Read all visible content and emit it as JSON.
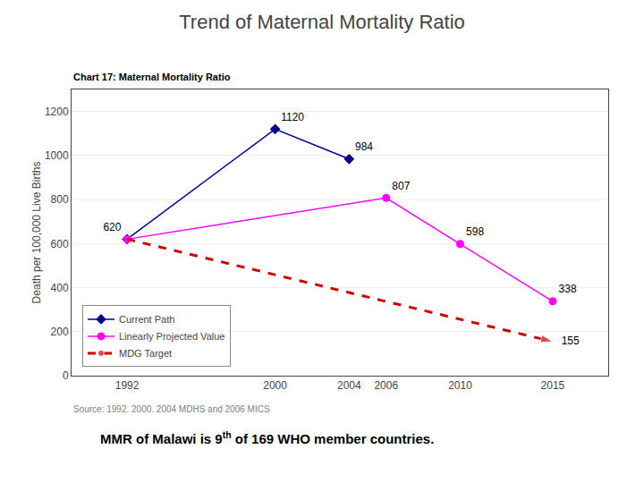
{
  "chart_data": {
    "type": "line",
    "title": "Trend of Maternal Mortality Ratio",
    "subtitle": "Chart 17: Maternal Mortality Ratio",
    "source": "Source: 1992. 2000. 2004 MDHS and 2006 MICS",
    "footnote": {
      "text": "MMR of Malawi is 9",
      "superscript": "th",
      "text_after": " of 169 WHO member countries."
    },
    "y_label": "Death per 100,000 Live Births",
    "xlim": [
      1989,
      2018
    ],
    "xticks": [
      1992,
      2000,
      2004,
      2006,
      2010,
      2015
    ],
    "ylim": [
      0,
      1300
    ],
    "yticks": [
      0,
      200,
      400,
      600,
      800,
      1000,
      1200
    ],
    "grid": "y",
    "legend": "lower left",
    "data_labels": true,
    "series": [
      {
        "name": "Current Path",
        "color": "#00008B",
        "marker": "diamond",
        "line_style": "solid",
        "x": [
          1992,
          2000,
          2004
        ],
        "values": [
          620,
          1120,
          984
        ]
      },
      {
        "name": "Linearly Projected Value",
        "color": "#FF00FF",
        "marker": "circle",
        "line_style": "solid",
        "x": [
          1992,
          2006,
          2010,
          2015
        ],
        "values": [
          620,
          807,
          598,
          338
        ],
        "value_labels": [
          null,
          "807",
          "598",
          "338"
        ]
      },
      {
        "name": "MDG Target",
        "color": "#CC0000",
        "marker": "arrow",
        "line_style": "dash",
        "x": [
          1992,
          2015
        ],
        "values": [
          620,
          155
        ],
        "value_labels": [
          null,
          "155"
        ]
      }
    ]
  }
}
